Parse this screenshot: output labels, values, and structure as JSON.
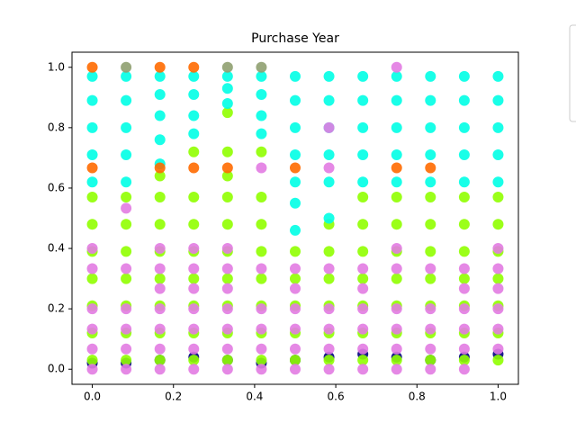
{
  "chart_data": {
    "type": "scatter",
    "title": "Purchase Year",
    "x": [
      0,
      0.0833,
      0.1667,
      0.25,
      0.3333,
      0.4167,
      0.5,
      0.5833,
      0.6667,
      0.75,
      0.8333,
      0.9167,
      1.0
    ],
    "series": [
      {
        "color": "#000080",
        "values": [
          [
            0.02
          ],
          [
            0.02
          ],
          [
            0.03
          ],
          [
            0.04
          ],
          [
            0.03
          ],
          [
            0.02
          ],
          [
            0.03
          ],
          [
            0.04
          ],
          [
            0.05
          ],
          [
            0.04
          ],
          [
            0.03
          ],
          [
            0.04
          ],
          [
            0.05
          ]
        ]
      },
      {
        "color": "#90ff00",
        "values": [
          [
            0.03,
            0.12,
            0.21,
            0.3,
            0.39,
            0.48,
            0.57
          ],
          [
            0.03,
            0.12,
            0.21,
            0.3,
            0.39,
            0.48,
            0.57
          ],
          [
            0.03,
            0.12,
            0.21,
            0.3,
            0.39,
            0.48,
            0.57,
            0.64
          ],
          [
            0.03,
            0.12,
            0.21,
            0.3,
            0.39,
            0.48,
            0.57,
            0.72
          ],
          [
            0.03,
            0.12,
            0.21,
            0.3,
            0.39,
            0.48,
            0.57,
            0.64,
            0.72,
            0.85
          ],
          [
            0.03,
            0.12,
            0.21,
            0.3,
            0.39,
            0.48,
            0.57,
            0.72
          ],
          [
            0.03,
            0.12,
            0.21,
            0.3,
            0.39
          ],
          [
            0.03,
            0.12,
            0.21,
            0.3,
            0.39,
            0.48
          ],
          [
            0.03,
            0.12,
            0.21,
            0.3,
            0.39,
            0.48,
            0.57
          ],
          [
            0.03,
            0.12,
            0.21,
            0.3,
            0.39,
            0.48,
            0.57
          ],
          [
            0.03,
            0.12,
            0.21,
            0.3,
            0.39,
            0.48,
            0.57
          ],
          [
            0.03,
            0.12,
            0.21,
            0.3,
            0.39,
            0.48,
            0.57
          ],
          [
            0.03,
            0.12,
            0.21,
            0.3,
            0.39,
            0.48,
            0.57
          ]
        ]
      },
      {
        "color": "#00ffe6",
        "values": [
          [
            0.62,
            0.71,
            0.8,
            0.89,
            0.97
          ],
          [
            0.62,
            0.71,
            0.8,
            0.89,
            0.97
          ],
          [
            0.68,
            0.76,
            0.84,
            0.91,
            0.97
          ],
          [
            0.78,
            0.84,
            0.91,
            0.97
          ],
          [
            0.88,
            0.93,
            0.97
          ],
          [
            0.78,
            0.84,
            0.91,
            0.97
          ],
          [
            0.46,
            0.55,
            0.62,
            0.71,
            0.8,
            0.89,
            0.97
          ],
          [
            0.5,
            0.62,
            0.71,
            0.8,
            0.89,
            0.97
          ],
          [
            0.62,
            0.71,
            0.8,
            0.89,
            0.97
          ],
          [
            0.62,
            0.71,
            0.8,
            0.89,
            0.97
          ],
          [
            0.62,
            0.71,
            0.8,
            0.89,
            0.97
          ],
          [
            0.62,
            0.71,
            0.8,
            0.89,
            0.97
          ],
          [
            0.62,
            0.71,
            0.8,
            0.89,
            0.97
          ]
        ]
      },
      {
        "color": "#e27be2",
        "values": [
          [
            0,
            0.067,
            0.133,
            0.2,
            0.333,
            0.4
          ],
          [
            0,
            0.067,
            0.133,
            0.2,
            0.333,
            0.533
          ],
          [
            0,
            0.067,
            0.133,
            0.2,
            0.267,
            0.333,
            0.4
          ],
          [
            0,
            0.067,
            0.133,
            0.2,
            0.267,
            0.333,
            0.4
          ],
          [
            0,
            0.067,
            0.133,
            0.2,
            0.267,
            0.333,
            0.4
          ],
          [
            0,
            0.067,
            0.133,
            0.2,
            0.333,
            0.667
          ],
          [
            0,
            0.067,
            0.133,
            0.2,
            0.267,
            0.333
          ],
          [
            0,
            0.067,
            0.133,
            0.2,
            0.333,
            0.667,
            0.8
          ],
          [
            0,
            0.067,
            0.133,
            0.2,
            0.267,
            0.333
          ],
          [
            0,
            0.067,
            0.133,
            0.2,
            0.333,
            0.4,
            1.0
          ],
          [
            0,
            0.067,
            0.133,
            0.2,
            0.333
          ],
          [
            0,
            0.067,
            0.133,
            0.2,
            0.267,
            0.333
          ],
          [
            0.067,
            0.133,
            0.2,
            0.267,
            0.333,
            0.4
          ]
        ]
      },
      {
        "color": "#ff6a00",
        "values": [
          [
            1.0,
            0.667
          ],
          [],
          [
            1.0,
            0.667
          ],
          [
            1.0,
            0.667
          ],
          [
            0.667
          ],
          [],
          [
            0.667
          ],
          [],
          [],
          [
            0.667
          ],
          [
            0.667
          ],
          [],
          []
        ]
      },
      {
        "color": "#8fa070",
        "values": [
          [],
          [
            1.0
          ],
          [],
          [],
          [
            1.0
          ],
          [
            1.0
          ],
          [],
          [],
          [],
          [],
          [],
          [],
          []
        ]
      }
    ],
    "xlim": [
      -0.05,
      1.05
    ],
    "ylim": [
      -0.05,
      1.05
    ],
    "xticks": [
      {
        "value": 0,
        "label": "0.0"
      },
      0.2,
      0.4,
      0.6,
      0.8,
      {
        "value": 1,
        "label": "1.0"
      }
    ],
    "yticks": [
      {
        "value": 0,
        "label": "0.0"
      },
      0.2,
      0.4,
      0.6,
      0.8,
      {
        "value": 1,
        "label": "1.0"
      }
    ]
  }
}
